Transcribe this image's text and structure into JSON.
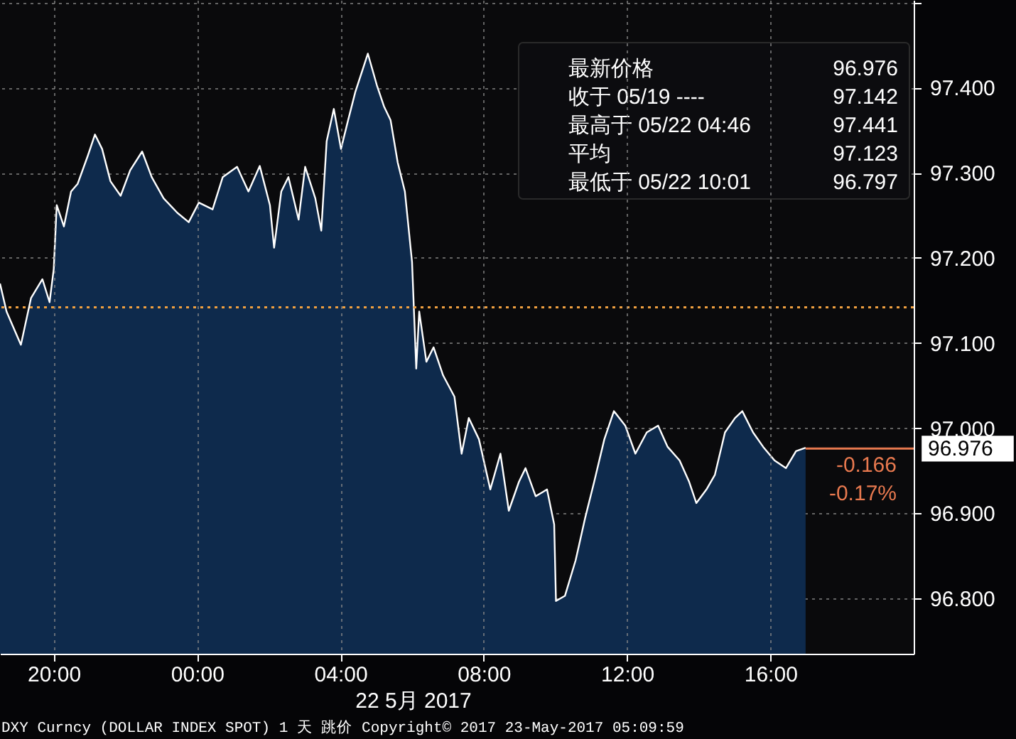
{
  "chart_data": {
    "type": "area",
    "x": [
      "2017-05-21T18:30",
      "2017-05-21T18:41",
      "2017-05-21T19:05",
      "2017-05-21T19:22",
      "2017-05-21T19:41",
      "2017-05-21T19:53",
      "2017-05-21T20:00",
      "2017-05-21T20:05",
      "2017-05-21T20:17",
      "2017-05-21T20:29",
      "2017-05-21T20:40",
      "2017-05-21T20:57",
      "2017-05-21T21:09",
      "2017-05-21T21:21",
      "2017-05-21T21:35",
      "2017-05-21T21:52",
      "2017-05-21T22:08",
      "2017-05-21T22:28",
      "2017-05-21T22:44",
      "2017-05-21T23:04",
      "2017-05-21T23:27",
      "2017-05-21T23:46",
      "2017-05-22T00:03",
      "2017-05-22T00:26",
      "2017-05-22T00:43",
      "2017-05-22T01:07",
      "2017-05-22T01:26",
      "2017-05-22T01:45",
      "2017-05-22T02:02",
      "2017-05-22T02:09",
      "2017-05-22T02:21",
      "2017-05-22T02:33",
      "2017-05-22T02:50",
      "2017-05-22T03:01",
      "2017-05-22T03:18",
      "2017-05-22T03:28",
      "2017-05-22T03:37",
      "2017-05-22T03:49",
      "2017-05-22T04:01",
      "2017-05-22T04:13",
      "2017-05-22T04:25",
      "2017-05-22T04:46",
      "2017-05-22T05:01",
      "2017-05-22T05:13",
      "2017-05-22T05:24",
      "2017-05-22T05:36",
      "2017-05-22T05:48",
      "2017-05-22T06:00",
      "2017-05-22T06:07",
      "2017-05-22T06:12",
      "2017-05-22T06:24",
      "2017-05-22T06:36",
      "2017-05-22T06:52",
      "2017-05-22T07:11",
      "2017-05-22T07:23",
      "2017-05-22T07:35",
      "2017-05-22T07:52",
      "2017-05-22T08:11",
      "2017-05-22T08:28",
      "2017-05-22T08:42",
      "2017-05-22T08:59",
      "2017-05-22T09:10",
      "2017-05-22T09:27",
      "2017-05-22T09:46",
      "2017-05-22T09:58",
      "2017-05-22T10:01",
      "2017-05-22T10:16",
      "2017-05-22T10:34",
      "2017-05-22T10:50",
      "2017-05-22T11:05",
      "2017-05-22T11:22",
      "2017-05-22T11:38",
      "2017-05-22T11:57",
      "2017-05-22T12:14",
      "2017-05-22T12:33",
      "2017-05-22T12:52",
      "2017-05-22T13:08",
      "2017-05-22T13:28",
      "2017-05-22T13:44",
      "2017-05-22T13:56",
      "2017-05-22T14:13",
      "2017-05-22T14:27",
      "2017-05-22T14:44",
      "2017-05-22T15:01",
      "2017-05-22T15:13",
      "2017-05-22T15:31",
      "2017-05-22T15:48",
      "2017-05-22T16:07",
      "2017-05-22T16:26",
      "2017-05-22T16:43",
      "2017-05-22T16:59"
    ],
    "series": [
      {
        "color": "#ffffff",
        "values": [
          97.17,
          97.137,
          97.098,
          97.153,
          97.175,
          97.148,
          97.187,
          97.262,
          97.237,
          97.278,
          97.287,
          97.32,
          97.345,
          97.328,
          97.29,
          97.273,
          97.303,
          97.325,
          97.295,
          97.27,
          97.253,
          97.242,
          97.265,
          97.257,
          97.295,
          97.307,
          97.278,
          97.308,
          97.262,
          97.212,
          97.278,
          97.295,
          97.245,
          97.307,
          97.27,
          97.232,
          97.337,
          97.375,
          97.328,
          97.362,
          97.395,
          97.44,
          97.403,
          97.378,
          97.362,
          97.312,
          97.278,
          97.195,
          97.07,
          97.137,
          97.078,
          97.095,
          97.062,
          97.037,
          96.97,
          97.012,
          96.987,
          96.928,
          96.97,
          96.903,
          96.937,
          96.953,
          96.92,
          96.928,
          96.887,
          96.797,
          96.803,
          96.845,
          96.895,
          96.937,
          96.987,
          97.02,
          97.003,
          96.97,
          96.995,
          97.003,
          96.978,
          96.962,
          96.937,
          96.912,
          96.928,
          96.945,
          96.995,
          97.012,
          97.02,
          96.995,
          96.978,
          96.962,
          96.953,
          96.973,
          96.977
        ]
      }
    ],
    "xlim": [
      "2017-05-21T18:30",
      "2017-05-22T20:00"
    ],
    "xticks": [
      {
        "value": "2017-05-21T20:00",
        "label": "20:00"
      },
      {
        "value": "2017-05-22T00:00",
        "label": "00:00"
      },
      {
        "value": "2017-05-22T04:00",
        "label": "04:00"
      },
      {
        "value": "2017-05-22T08:00",
        "label": "08:00"
      },
      {
        "value": "2017-05-22T12:00",
        "label": "12:00"
      },
      {
        "value": "2017-05-22T16:00",
        "label": "16:00"
      }
    ],
    "ylim": [
      96.735,
      97.503
    ],
    "yticks": [
      {
        "value": 96.8,
        "label": "96.800"
      },
      {
        "value": 96.9,
        "label": "96.900"
      },
      {
        "value": 97.0,
        "label": "97.000"
      },
      {
        "value": 97.1,
        "label": "97.100"
      },
      {
        "value": 97.2,
        "label": "97.200"
      },
      {
        "value": 97.3,
        "label": "97.300"
      },
      {
        "value": 97.4,
        "label": "97.400"
      },
      {
        "value": 97.5,
        "label": null
      }
    ],
    "grid": true,
    "ref_lines": [
      {
        "axis": "y",
        "value": 97.142,
        "color": "#f0a040",
        "line_style": "dotted"
      },
      {
        "axis": "y",
        "value": 96.976,
        "label": "96.976",
        "color": "#e8794f",
        "line_style": "solid"
      }
    ],
    "annotations": [
      "最新价格 96.976",
      "收于 05/19 ---- 97.142",
      "最高于 05/22 04:46 97.441",
      "平均 97.123",
      "最低于 05/22 10:01 96.797",
      "-0.166",
      "-0.17%",
      "22 5月 2017",
      "DXY Curncy (DOLLAR INDEX SPOT) 1 天  跳价 Copyright© 2017 23-May-2017 05:09:59"
    ]
  }
}
